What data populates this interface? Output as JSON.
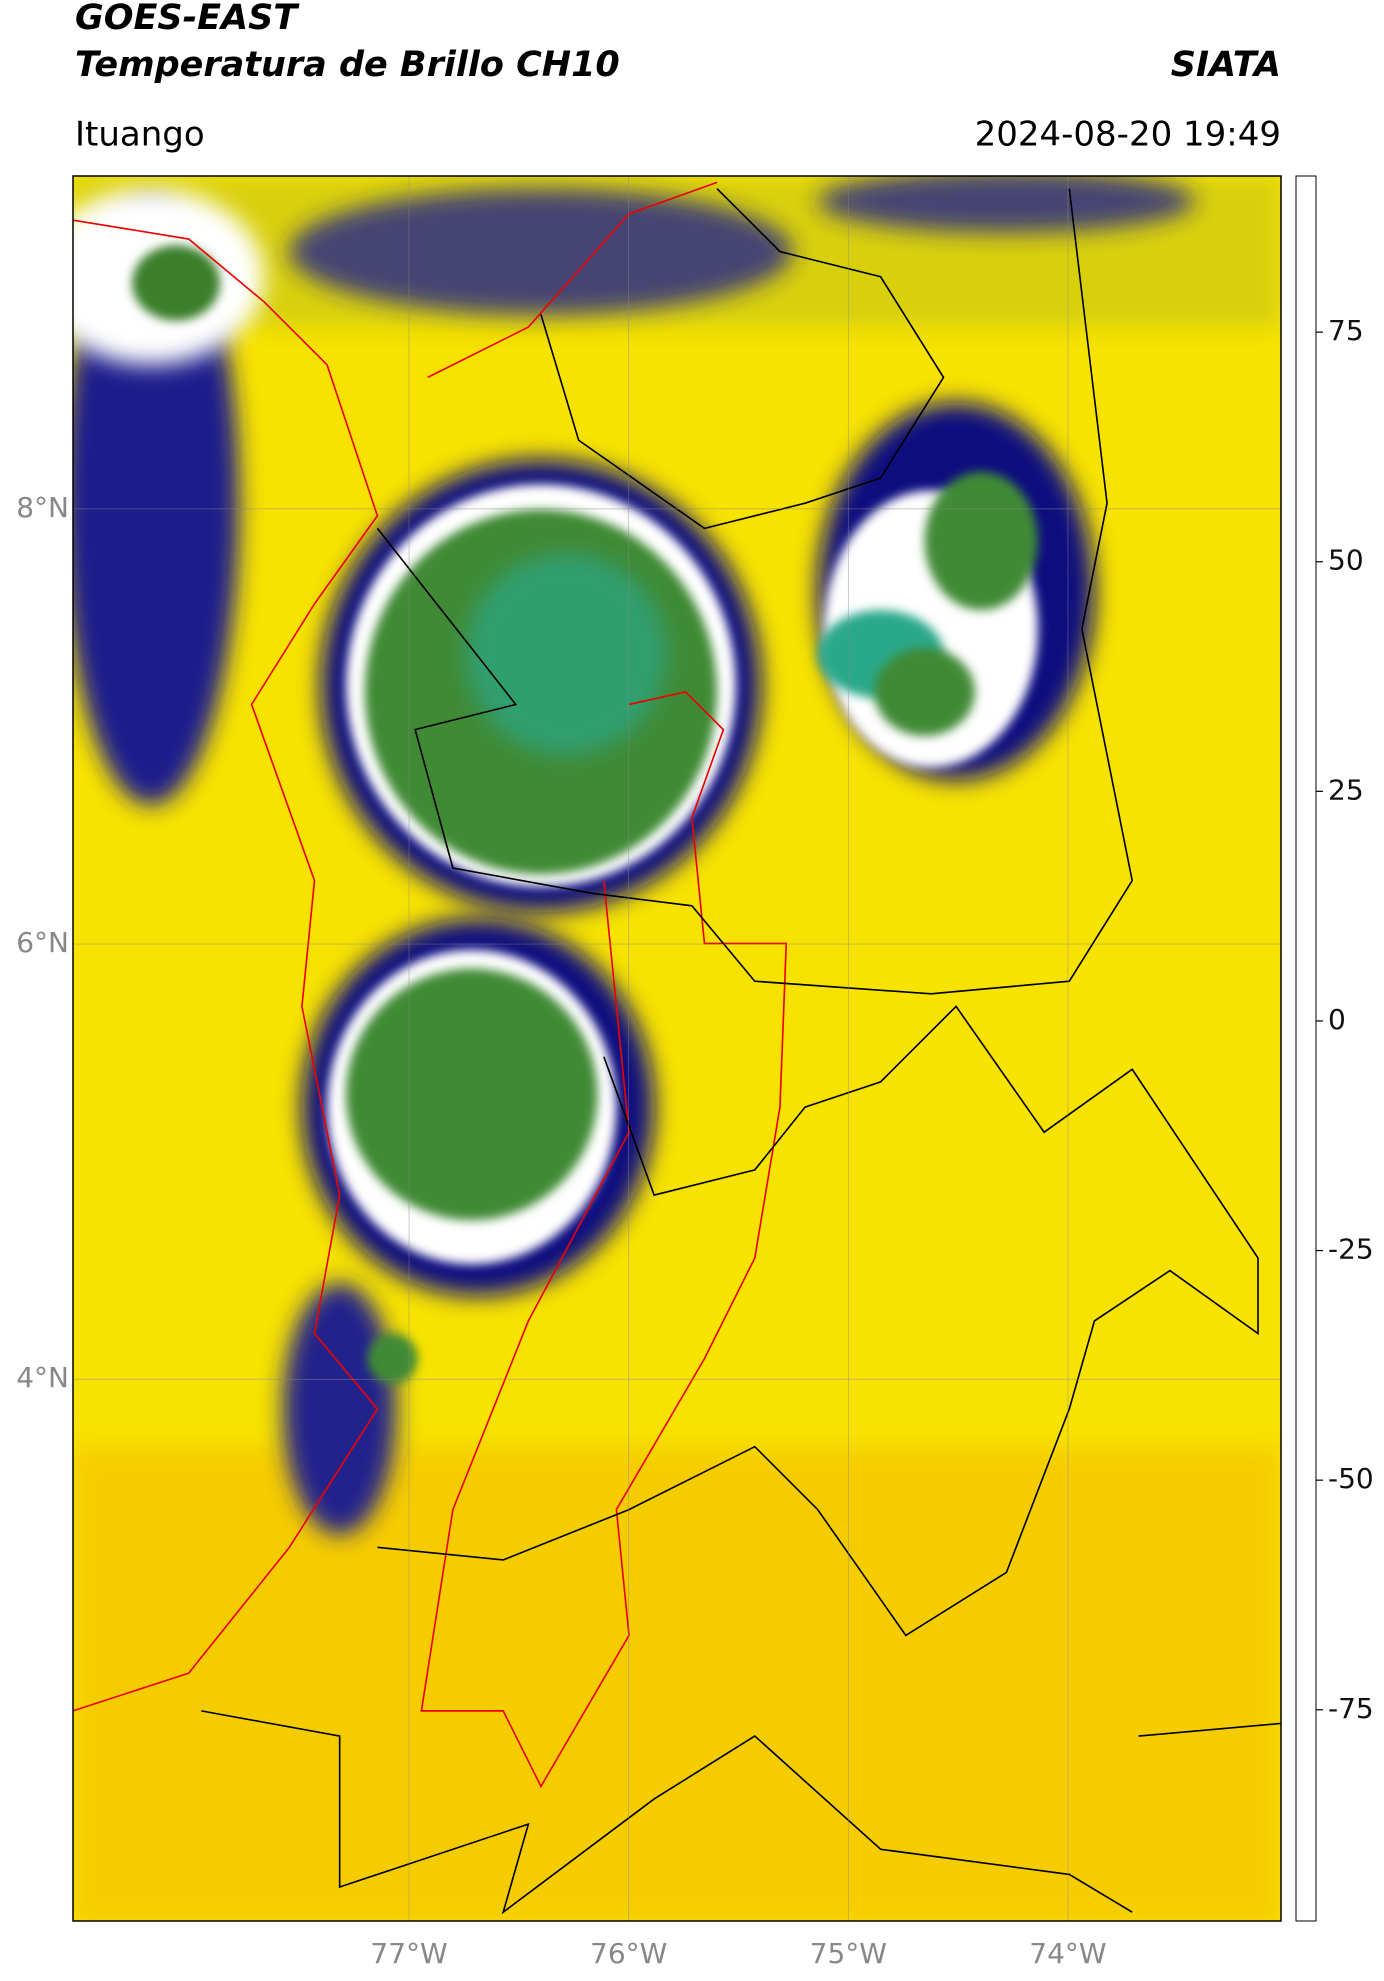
{
  "chart_data": {
    "type": "map",
    "title": "GOES-EAST",
    "subtitle": "Temperatura de Brillo CH10",
    "source": "SIATA",
    "location": "Ituango",
    "datetime": "2024-08-20 19:49",
    "xlim": [
      -78.53,
      -73.03
    ],
    "xticks": [
      {
        "value": -77,
        "label": "77°W"
      },
      {
        "value": -76,
        "label": "76°W"
      },
      {
        "value": -75,
        "label": "75°W"
      },
      {
        "value": -74,
        "label": "74°W"
      }
    ],
    "ylim": [
      1.51,
      9.53
    ],
    "yticks": [
      {
        "value": 4,
        "label": "4°N"
      },
      {
        "value": 6,
        "label": "6°N"
      },
      {
        "value": 8,
        "label": "8°N"
      }
    ],
    "grid": true,
    "colorbar": {
      "lim": [
        -98,
        92
      ],
      "ticks": [
        75,
        50,
        25,
        0,
        -25,
        -50,
        -75
      ],
      "stops": [
        {
          "value": -98,
          "color": "#ffffff"
        },
        {
          "value": -95,
          "color": "#ffffff"
        },
        {
          "value": -94.9,
          "color": "#00ffff"
        },
        {
          "value": -85,
          "color": "#19c0b0"
        },
        {
          "value": -72,
          "color": "#1f9a6a"
        },
        {
          "value": -62,
          "color": "#3a7f2a"
        },
        {
          "value": -50,
          "color": "#ffffff"
        },
        {
          "value": -40,
          "color": "#8c8cc8"
        },
        {
          "value": -27,
          "color": "#000080"
        },
        {
          "value": -22,
          "color": "#5a5a40"
        },
        {
          "value": -15,
          "color": "#ffff00"
        },
        {
          "value": -3,
          "color": "#ffa500"
        },
        {
          "value": 8,
          "color": "#ff0000"
        },
        {
          "value": 8.1,
          "color": "#000000"
        },
        {
          "value": 92,
          "color": "#000000"
        }
      ]
    }
  }
}
